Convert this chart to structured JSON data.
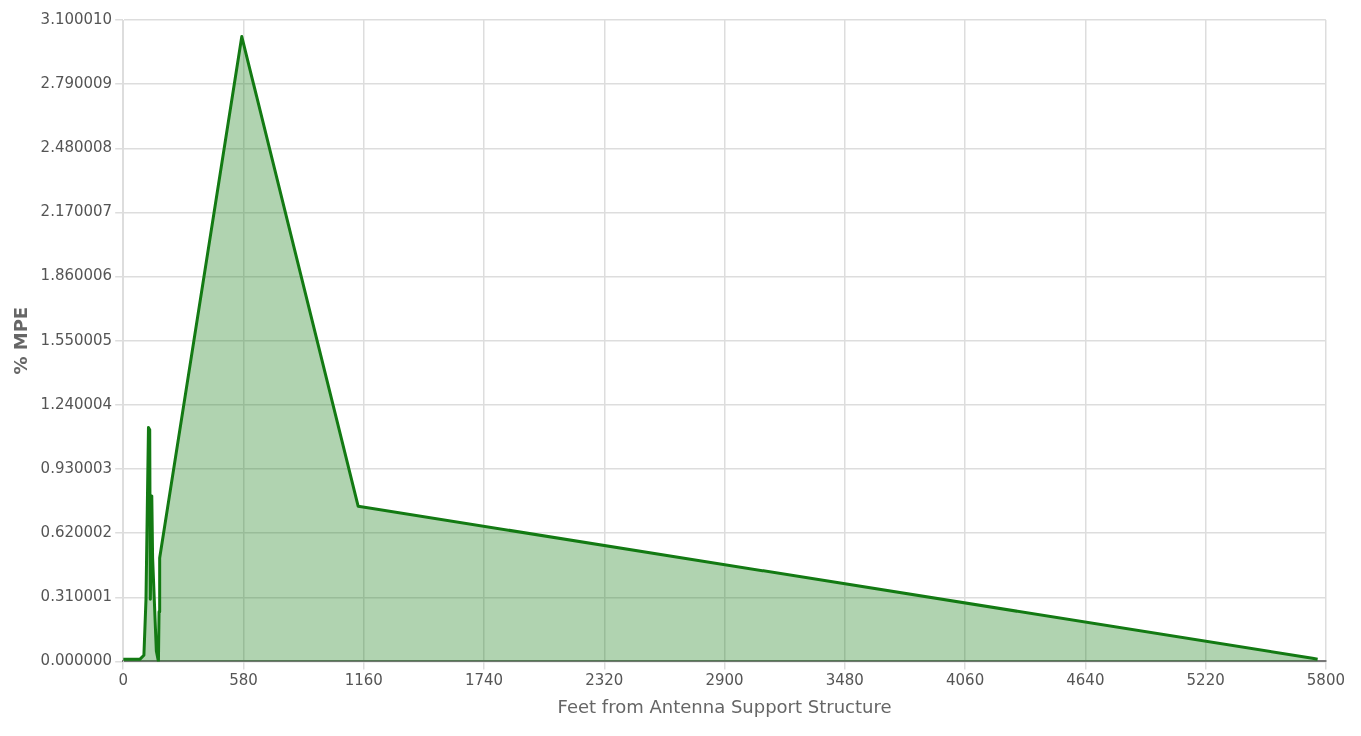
{
  "chart_data": {
    "type": "area",
    "xlabel": "Feet from Antenna Support Structure",
    "ylabel": "% MPE",
    "x": [
      0,
      80,
      100,
      110,
      122,
      128,
      131,
      138,
      142,
      160,
      170,
      173,
      176,
      572,
      1133,
      5735,
      5760
    ],
    "series": [
      {
        "color": "#137a13",
        "values": [
          0.01,
          0.01,
          0.03,
          0.3,
          1.13,
          1.12,
          0.3,
          0.8,
          0.5,
          0.05,
          0,
          0.24,
          0.5,
          3.02,
          0.75,
          0.015,
          0.01
        ]
      }
    ],
    "xlim": [
      0,
      5800
    ],
    "xticks": [
      0,
      580,
      1160,
      1740,
      2320,
      2900,
      3480,
      4060,
      4640,
      5220,
      5800
    ],
    "ylim": [
      0,
      3.10001
    ],
    "yticks": [
      {
        "value": 0,
        "label": "0.000000"
      },
      {
        "value": 0.310001,
        "label": "0.310001"
      },
      {
        "value": 0.620002,
        "label": "0.620002"
      },
      {
        "value": 0.930003,
        "label": "0.930003"
      },
      {
        "value": 1.240004,
        "label": "1.240004"
      },
      {
        "value": 1.550005,
        "label": "1.550005"
      },
      {
        "value": 1.860006,
        "label": "1.860006"
      },
      {
        "value": 2.170007,
        "label": "2.170007"
      },
      {
        "value": 2.480008,
        "label": "2.480008"
      },
      {
        "value": 2.790009,
        "label": "2.790009"
      },
      {
        "value": 3.10001,
        "label": "3.100010"
      }
    ],
    "grid": true,
    "marker": "none",
    "line_style": "solid"
  }
}
